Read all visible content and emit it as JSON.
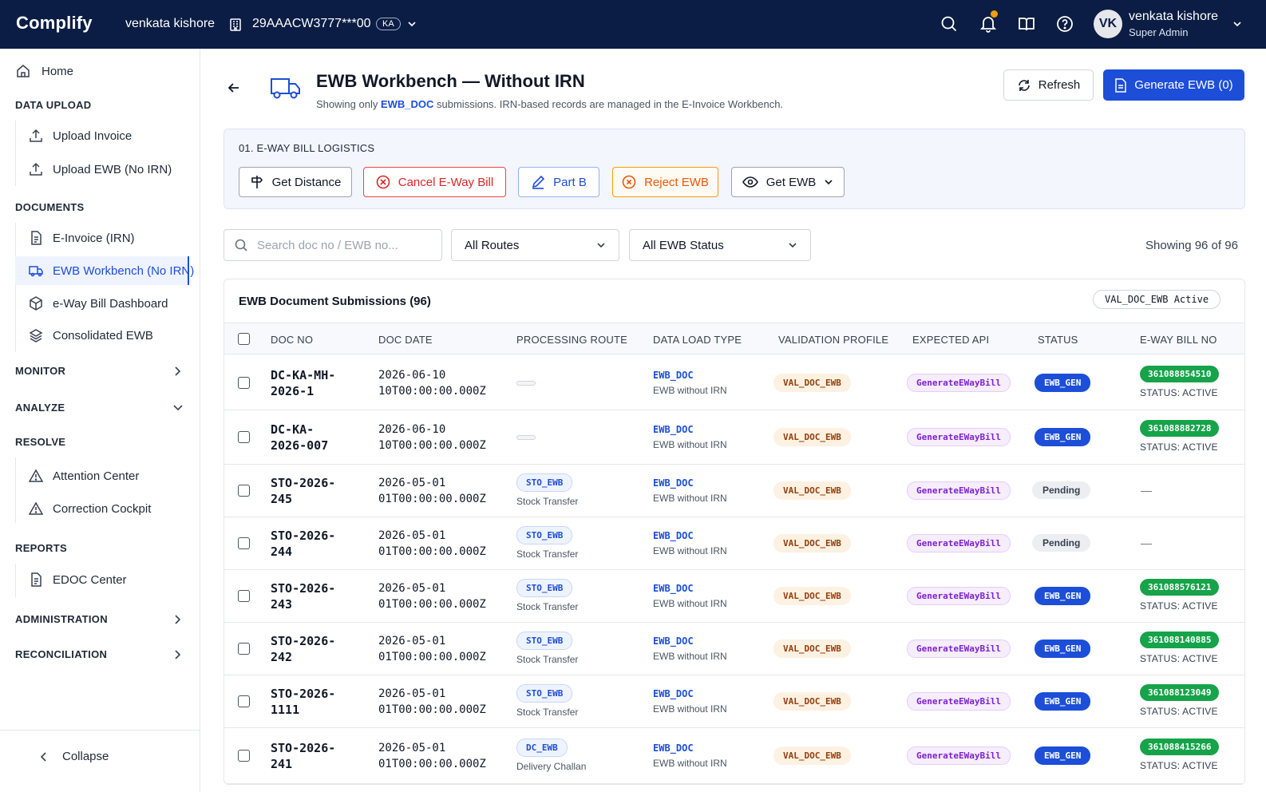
{
  "topbar": {
    "logo": "Complify",
    "user": "venkata kishore",
    "gstin": "29AAACW3777***00",
    "state": "KA",
    "profile_name": "venkata kishore",
    "profile_role": "Super Admin",
    "avatar_initials": "VK"
  },
  "sidebar": {
    "home": "Home",
    "data_upload": "DATA  UPLOAD",
    "upload_invoice": "Upload Invoice",
    "upload_ewb": "Upload EWB (No IRN)",
    "documents": "DOCUMENTS",
    "einvoice": "E-Invoice (IRN)",
    "ewb_workbench": "EWB Workbench (No IRN)",
    "eway_dashboard": "e-Way Bill Dashboard",
    "consolidated": "Consolidated EWB",
    "monitor": "MONITOR",
    "analyze": "ANALYZE",
    "resolve": "RESOLVE",
    "attention": "Attention Center",
    "correction": "Correction Cockpit",
    "reports": "REPORTS",
    "edoc": "EDOC Center",
    "administration": "ADMINISTRATION",
    "reconciliation": "RECONCILIATION",
    "collapse": "Collapse"
  },
  "header": {
    "title": "EWB Workbench — Without IRN",
    "sub_prefix": "Showing only ",
    "sub_highlight": "EWB_DOC",
    "sub_suffix": " submissions. IRN-based records are managed in the E-Invoice Workbench.",
    "refresh": "Refresh",
    "generate": "Generate EWB (0)"
  },
  "logistics": {
    "label": "01. E-WAY BILL LOGISTICS",
    "get_distance": "Get Distance",
    "cancel": "Cancel E-Way Bill",
    "part_b": "Part B",
    "reject": "Reject EWB",
    "get_ewb": "Get EWB"
  },
  "filters": {
    "search_placeholder": "Search doc no / EWB no...",
    "routes": "All Routes",
    "status": "All EWB Status",
    "showing": "Showing 96 of 96"
  },
  "table": {
    "title": "EWB Document Submissions (96)",
    "badge": "VAL_DOC_EWB Active",
    "columns": {
      "doc_no": "DOC NO",
      "doc_date": "DOC DATE",
      "route": "PROCESSING ROUTE",
      "dlt": "DATA LOAD TYPE",
      "profile": "VALIDATION PROFILE",
      "api": "EXPECTED API",
      "status": "STATUS",
      "ewb": "E-WAY BILL NO"
    },
    "rows": [
      {
        "doc1": "DC-KA-MH-",
        "doc2": "2026-1",
        "date1": "2026-06-10",
        "date2": "10T00:00:00.000Z",
        "route": "",
        "route_sub": "",
        "dlt": "EWB_DOC",
        "dlt_sub": "EWB without IRN",
        "profile": "VAL_DOC_EWB",
        "api": "GenerateEWayBill",
        "status": "EWB_GEN",
        "ewb": "361088854510",
        "ewb_status": "STATUS: ACTIVE"
      },
      {
        "doc1": "DC-KA-",
        "doc2": "2026-007",
        "date1": "2026-06-10",
        "date2": "10T00:00:00.000Z",
        "route": "",
        "route_sub": "",
        "dlt": "EWB_DOC",
        "dlt_sub": "EWB without IRN",
        "profile": "VAL_DOC_EWB",
        "api": "GenerateEWayBill",
        "status": "EWB_GEN",
        "ewb": "361088882728",
        "ewb_status": "STATUS: ACTIVE"
      },
      {
        "doc1": "STO-2026-",
        "doc2": "245",
        "date1": "2026-05-01",
        "date2": "01T00:00:00.000Z",
        "route": "STO_EWB",
        "route_sub": "Stock Transfer",
        "dlt": "EWB_DOC",
        "dlt_sub": "EWB without IRN",
        "profile": "VAL_DOC_EWB",
        "api": "GenerateEWayBill",
        "status": "Pending",
        "ewb": "—",
        "ewb_status": ""
      },
      {
        "doc1": "STO-2026-",
        "doc2": "244",
        "date1": "2026-05-01",
        "date2": "01T00:00:00.000Z",
        "route": "STO_EWB",
        "route_sub": "Stock Transfer",
        "dlt": "EWB_DOC",
        "dlt_sub": "EWB without IRN",
        "profile": "VAL_DOC_EWB",
        "api": "GenerateEWayBill",
        "status": "Pending",
        "ewb": "—",
        "ewb_status": ""
      },
      {
        "doc1": "STO-2026-",
        "doc2": "243",
        "date1": "2026-05-01",
        "date2": "01T00:00:00.000Z",
        "route": "STO_EWB",
        "route_sub": "Stock Transfer",
        "dlt": "EWB_DOC",
        "dlt_sub": "EWB without IRN",
        "profile": "VAL_DOC_EWB",
        "api": "GenerateEWayBill",
        "status": "EWB_GEN",
        "ewb": "361088576121",
        "ewb_status": "STATUS: ACTIVE"
      },
      {
        "doc1": "STO-2026-",
        "doc2": "242",
        "date1": "2026-05-01",
        "date2": "01T00:00:00.000Z",
        "route": "STO_EWB",
        "route_sub": "Stock Transfer",
        "dlt": "EWB_DOC",
        "dlt_sub": "EWB without IRN",
        "profile": "VAL_DOC_EWB",
        "api": "GenerateEWayBill",
        "status": "EWB_GEN",
        "ewb": "361088140885",
        "ewb_status": "STATUS: ACTIVE"
      },
      {
        "doc1": "STO-2026-",
        "doc2": "1111",
        "date1": "2026-05-01",
        "date2": "01T00:00:00.000Z",
        "route": "STO_EWB",
        "route_sub": "Stock Transfer",
        "dlt": "EWB_DOC",
        "dlt_sub": "EWB without IRN",
        "profile": "VAL_DOC_EWB",
        "api": "GenerateEWayBill",
        "status": "EWB_GEN",
        "ewb": "361088123049",
        "ewb_status": "STATUS: ACTIVE"
      },
      {
        "doc1": "STO-2026-",
        "doc2": "241",
        "date1": "2026-05-01",
        "date2": "01T00:00:00.000Z",
        "route": "DC_EWB",
        "route_sub": "Delivery Challan",
        "dlt": "EWB_DOC",
        "dlt_sub": "EWB without IRN",
        "profile": "VAL_DOC_EWB",
        "api": "GenerateEWayBill",
        "status": "EWB_GEN",
        "ewb": "361088415266",
        "ewb_status": "STATUS: ACTIVE"
      }
    ]
  }
}
